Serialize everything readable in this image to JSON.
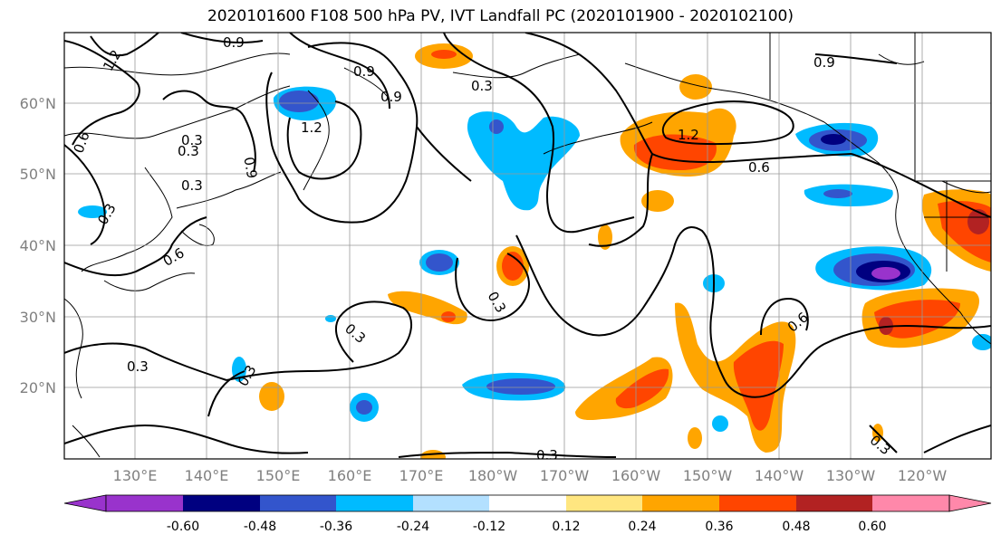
{
  "title": "2020101600 F108 500 hPa PV, IVT Landfall PC (2020101900 - 2020102100)",
  "map": {
    "lon_labels": [
      "130°E",
      "140°E",
      "150°E",
      "160°E",
      "170°E",
      "180°W",
      "170°W",
      "160°W",
      "150°W",
      "140°W",
      "130°W",
      "120°W"
    ],
    "lat_labels": [
      "60°N",
      "50°N",
      "40°N",
      "30°N",
      "20°N"
    ],
    "contour_labels": [
      "1.2",
      "0.9",
      "0.9",
      "0.9",
      "1.2",
      "0.6",
      "0.3",
      "0.9",
      "0.3",
      "0.6",
      "0.3",
      "0.3",
      "0.3",
      "0.3",
      "0.3",
      "1.2",
      "0.6",
      "0.9",
      "0.6",
      "0.3",
      "0.3",
      "0.3",
      "0.3"
    ],
    "grid": true
  },
  "colorbar": {
    "ticks": [
      "-0.60",
      "-0.48",
      "-0.36",
      "-0.24",
      "-0.12",
      "0.12",
      "0.24",
      "0.36",
      "0.48",
      "0.60"
    ],
    "colors": [
      "#9933cc",
      "#000080",
      "#3355cc",
      "#00bbff",
      "#b3e0ff",
      "#ffffff",
      "#ffe680",
      "#ffa500",
      "#ff4500",
      "#b22222",
      "#ff88aa"
    ]
  }
}
